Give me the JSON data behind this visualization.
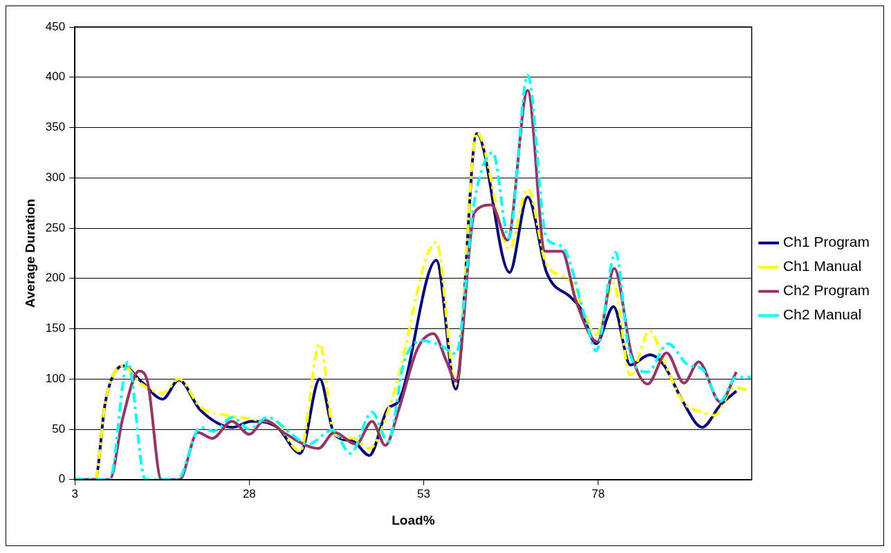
{
  "chart_data": {
    "type": "line",
    "xlabel": "Load%",
    "ylabel": "Average Duration",
    "xlim": [
      3,
      100
    ],
    "xticks": [
      3,
      28,
      53,
      78
    ],
    "ylim": [
      0,
      450
    ],
    "yticks": [
      0,
      50,
      100,
      150,
      200,
      250,
      300,
      350,
      400,
      450
    ],
    "grid": "y",
    "legend": "right",
    "marker": "none",
    "series": [
      {
        "name": "Ch1 Program",
        "color": "#000080",
        "line_style": "solid",
        "x": [
          3,
          5.9,
          7.4,
          9.9,
          12.6,
          15.6,
          17.9,
          21,
          25.6,
          28.3,
          32,
          35.3,
          38.1,
          40.2,
          42.9,
          45.2,
          47.9,
          49.4,
          54.8,
          57.6,
          60.6,
          65.3,
          67.9,
          70.6,
          74.1,
          75.5,
          77.7,
          80.2,
          82.6,
          85.4,
          87.4,
          90.1,
          92.9,
          95.5,
          97.8
        ],
        "values": [
          0,
          0,
          78,
          113,
          97,
          80,
          99,
          69,
          52,
          58,
          52,
          26,
          100,
          45,
          38,
          24,
          71,
          78,
          218,
          90,
          344,
          206,
          281,
          206,
          181,
          170,
          135,
          172,
          114,
          124,
          114,
          78,
          52,
          74,
          88
        ]
      },
      {
        "name": "Ch1 Manual",
        "color": "#ffff00",
        "line_style": "dashed",
        "x": [
          3,
          5.9,
          7.4,
          9.9,
          12.6,
          15.6,
          17.9,
          21,
          25.6,
          28.3,
          32,
          35.3,
          38.1,
          40.2,
          42.9,
          45.2,
          48.6,
          54.8,
          57.6,
          60.6,
          65.3,
          67.9,
          70.6,
          74.1,
          75.5,
          77.7,
          80.2,
          82.6,
          85.4,
          87.4,
          90.1,
          92.9,
          94.7,
          97.5,
          99.8
        ],
        "values": [
          0,
          0,
          78,
          113,
          95,
          86,
          100,
          72,
          63,
          60,
          54,
          28,
          135,
          45,
          41,
          31,
          83,
          236,
          95,
          345,
          229,
          289,
          214,
          197,
          175,
          144,
          195,
          104,
          148,
          118,
          78,
          67,
          64,
          92,
          88
        ]
      },
      {
        "name": "Ch2 Program",
        "color": "#993366",
        "line_style": "solid",
        "x": [
          3,
          8,
          9.9,
          12.2,
          13.4,
          15.4,
          18,
          20.6,
          22.7,
          25.5,
          28,
          30.2,
          33.3,
          37.9,
          40.2,
          43.3,
          45.6,
          47.5,
          49.4,
          52.1,
          54.4,
          56.3,
          57.6,
          60.3,
          62.7,
          65,
          67.9,
          70.4,
          72.8,
          74.8,
          77.9,
          80.3,
          82.8,
          85.1,
          87.8,
          90.3,
          92.4,
          95.5,
          97.8
        ],
        "values": [
          0,
          0,
          62,
          108,
          98,
          0,
          0,
          47,
          41,
          58,
          45,
          59,
          45,
          31,
          47,
          35,
          58,
          34,
          69,
          130,
          145,
          117,
          98,
          266,
          273,
          238,
          387,
          227,
          227,
          178,
          137,
          210,
          124,
          95,
          126,
          96,
          117,
          77,
          107
        ]
      },
      {
        "name": "Ch2 Manual",
        "color": "#00ffff",
        "line_style": "dashed",
        "x": [
          3,
          8,
          10.6,
          13.1,
          17.7,
          21,
          22.9,
          25.6,
          28,
          30.6,
          34.1,
          36.4,
          39.9,
          42.5,
          45.6,
          47.9,
          50.2,
          52.9,
          55.5,
          57.6,
          60.3,
          62.9,
          65.2,
          67.9,
          70.6,
          72.8,
          76.3,
          77.7,
          80.5,
          82.5,
          85.1,
          88,
          90.9,
          92.9,
          95.5,
          97.8,
          99.9
        ],
        "values": [
          0,
          0,
          117,
          0,
          0,
          52,
          48,
          62,
          50,
          62,
          45,
          35,
          49,
          26,
          67,
          38,
          117,
          138,
          133,
          125,
          278,
          325,
          240,
          402,
          240,
          232,
          157,
          128,
          226,
          126,
          107,
          135,
          114,
          110,
          78,
          102,
          102
        ]
      }
    ]
  }
}
